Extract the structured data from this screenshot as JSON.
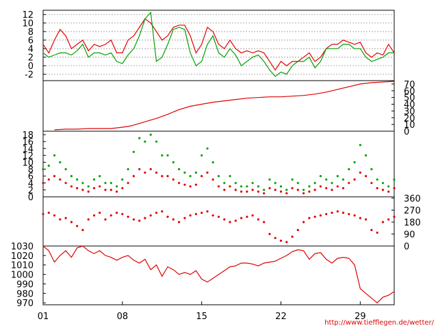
{
  "colors": {
    "primary": "#e00000",
    "secondary": "#00a000",
    "grid": "#999999",
    "axis": "#000000"
  },
  "x_axis": {
    "tick_labels": [
      "01",
      "08",
      "15",
      "22",
      "29"
    ],
    "tick_days": [
      1,
      8,
      15,
      22,
      29
    ],
    "range": [
      1,
      32
    ]
  },
  "source": "http://www.tiefflegen.de/wetter/",
  "chart_data": [
    {
      "id": "temperature",
      "type": "line",
      "ylim": [
        -3.5,
        13
      ],
      "yticks": [
        -2,
        0,
        2,
        4,
        6,
        8,
        10,
        12
      ],
      "grid": true,
      "tick_side": "left",
      "series": [
        {
          "color": "#e00000",
          "x": [
            1,
            1.5,
            2,
            2.5,
            3,
            3.5,
            4,
            4.5,
            5,
            5.5,
            6,
            6.5,
            7,
            7.5,
            8,
            8.5,
            9,
            9.5,
            10,
            10.5,
            11,
            11.5,
            12,
            12.5,
            13,
            13.5,
            14,
            14.5,
            15,
            15.5,
            16,
            16.5,
            17,
            17.5,
            18,
            18.5,
            19,
            19.5,
            20,
            20.5,
            21,
            21.5,
            22,
            22.5,
            23,
            23.5,
            24,
            24.5,
            25,
            25.5,
            26,
            26.5,
            27,
            27.5,
            28,
            28.5,
            29,
            29.5,
            30,
            30.5,
            31,
            31.5,
            32
          ],
          "y": [
            5,
            3,
            6,
            8.5,
            7,
            4,
            5,
            6,
            3.5,
            5,
            4.5,
            5,
            6,
            3,
            3,
            6,
            7,
            9,
            11,
            10,
            8,
            6,
            7,
            9,
            9.5,
            9.5,
            7,
            3,
            5,
            9,
            8,
            5,
            4,
            6,
            4,
            3,
            3.5,
            3,
            3.5,
            3,
            1,
            -1,
            1,
            0,
            1,
            1,
            2,
            3,
            1,
            2,
            4,
            5,
            5,
            6,
            5.5,
            5,
            5.5,
            3,
            2,
            3,
            2.5,
            5,
            3
          ]
        },
        {
          "color": "#00a000",
          "x": [
            1,
            1.5,
            2,
            2.5,
            3,
            3.5,
            4,
            4.5,
            5,
            5.5,
            6,
            6.5,
            7,
            7.5,
            8,
            8.5,
            9,
            9.5,
            10,
            10.5,
            11,
            11.5,
            12,
            12.5,
            13,
            13.5,
            14,
            14.5,
            15,
            15.5,
            16,
            16.5,
            17,
            17.5,
            18,
            18.5,
            19,
            19.5,
            20,
            20.5,
            21,
            21.5,
            22,
            22.5,
            23,
            23.5,
            24,
            24.5,
            25,
            25.5,
            26,
            26.5,
            27,
            27.5,
            28,
            28.5,
            29,
            29.5,
            30,
            30.5,
            31,
            31.5,
            32
          ],
          "y": [
            3,
            2,
            2.5,
            3,
            3,
            2.5,
            3.5,
            5,
            2,
            3,
            3,
            2.5,
            3,
            1,
            0.5,
            2.5,
            4,
            7,
            11,
            12.5,
            1,
            2,
            5,
            8.5,
            9,
            8.5,
            3,
            0,
            1,
            5,
            7,
            3,
            2,
            4,
            2.5,
            0,
            1,
            2,
            2.5,
            1,
            -1,
            -2.5,
            -1.5,
            -2,
            0,
            1,
            1,
            2,
            -0.5,
            1,
            4,
            4,
            4,
            5,
            5,
            4,
            4,
            2,
            1,
            1.5,
            2,
            3,
            3
          ]
        }
      ]
    },
    {
      "id": "precipitation",
      "type": "line",
      "ylim": [
        0,
        75
      ],
      "yticks": [
        0,
        10,
        20,
        30,
        40,
        50,
        60,
        70
      ],
      "grid": false,
      "tick_side": "right",
      "series": [
        {
          "color": "#e00000",
          "x": [
            2,
            3,
            4,
            5,
            6,
            7,
            8,
            8.5,
            9,
            10,
            11,
            12,
            13,
            14,
            15,
            16,
            17,
            18,
            19,
            20,
            21,
            22,
            23,
            24,
            25,
            26,
            27,
            28,
            29,
            30,
            31,
            32
          ],
          "y": [
            2,
            3,
            3,
            4,
            4,
            4,
            6,
            7,
            9,
            14,
            19,
            25,
            32,
            37,
            40,
            43,
            45,
            47,
            49,
            50,
            51,
            51,
            52,
            53,
            55,
            58,
            62,
            66,
            70,
            72,
            73,
            74
          ]
        }
      ]
    },
    {
      "id": "wind_speed",
      "type": "scatter",
      "ylim": [
        0,
        19
      ],
      "yticks": [
        0,
        2,
        4,
        6,
        8,
        10,
        12,
        14,
        16,
        18
      ],
      "grid": false,
      "tick_side": "left",
      "series": [
        {
          "color": "#00a000",
          "x": [
            1,
            1.5,
            2,
            2.5,
            3,
            3.5,
            4,
            4.5,
            5,
            5.5,
            6,
            6.5,
            7,
            7.5,
            8,
            8.5,
            9,
            9.5,
            10,
            10.5,
            11,
            11.5,
            12,
            12.5,
            13,
            13.5,
            14,
            14.5,
            15,
            15.5,
            16,
            16.5,
            17,
            17.5,
            18,
            18.5,
            19,
            19.5,
            20,
            20.5,
            21,
            21.5,
            22,
            22.5,
            23,
            23.5,
            24,
            24.5,
            25,
            25.5,
            26,
            26.5,
            27,
            27.5,
            28,
            28.5,
            29,
            29.5,
            30,
            30.5,
            31,
            31.5,
            32
          ],
          "y": [
            8,
            9,
            12,
            10,
            8,
            6,
            5,
            4,
            3,
            5,
            6,
            4,
            4,
            3,
            5,
            8,
            13,
            17,
            16,
            18,
            16,
            12,
            12,
            10,
            8,
            7,
            6,
            7,
            12,
            14,
            10,
            6,
            4,
            6,
            4,
            3,
            3,
            4,
            3,
            2,
            5,
            4,
            3,
            2,
            5,
            4,
            2,
            3,
            4,
            6,
            5,
            4,
            6,
            5,
            8,
            10,
            15,
            12,
            8,
            5,
            4,
            3,
            5
          ]
        },
        {
          "color": "#e00000",
          "x": [
            1,
            1.5,
            2,
            2.5,
            3,
            3.5,
            4,
            4.5,
            5,
            5.5,
            6,
            6.5,
            7,
            7.5,
            8,
            8.5,
            9,
            9.5,
            10,
            10.5,
            11,
            11.5,
            12,
            12.5,
            13,
            13.5,
            14,
            14.5,
            15,
            15.5,
            16,
            16.5,
            17,
            17.5,
            18,
            18.5,
            19,
            19.5,
            20,
            20.5,
            21,
            21.5,
            22,
            22.5,
            23,
            23.5,
            24,
            24.5,
            25,
            25.5,
            26,
            26.5,
            27,
            27.5,
            28,
            28.5,
            29,
            29.5,
            30,
            30.5,
            31,
            31.5,
            32
          ],
          "y": [
            4,
            5,
            6,
            5,
            4,
            3,
            2.5,
            2,
            1.5,
            2.5,
            3,
            2,
            2,
            1.5,
            2.5,
            4,
            6,
            8,
            7,
            8,
            7,
            6,
            6,
            5,
            4,
            3.5,
            3,
            3.5,
            6,
            7,
            5,
            3,
            2,
            3,
            2,
            1.5,
            1.5,
            2,
            1.5,
            1,
            2.5,
            2,
            1.5,
            1,
            2.5,
            2,
            1,
            1.5,
            2,
            3,
            2.5,
            2,
            3,
            2.5,
            4,
            5,
            7,
            6,
            4,
            2.5,
            2,
            1.5,
            2.5
          ]
        }
      ]
    },
    {
      "id": "wind_direction",
      "type": "scatter",
      "ylim": [
        0,
        370
      ],
      "yticks": [
        0,
        90,
        180,
        270,
        360
      ],
      "grid": false,
      "tick_side": "right",
      "series": [
        {
          "color": "#e00000",
          "x": [
            1,
            1.5,
            2,
            2.5,
            3,
            3.5,
            4,
            4.5,
            5,
            5.5,
            6,
            6.5,
            7,
            7.5,
            8,
            8.5,
            9,
            9.5,
            10,
            10.5,
            11,
            11.5,
            12,
            12.5,
            13,
            13.5,
            14,
            14.5,
            15,
            15.5,
            16,
            16.5,
            17,
            17.5,
            18,
            18.5,
            19,
            19.5,
            20,
            20.5,
            21,
            21.5,
            22,
            22.5,
            23,
            23.5,
            24,
            24.5,
            25,
            25.5,
            26,
            26.5,
            27,
            27.5,
            28,
            28.5,
            29,
            29.5,
            30,
            30.5,
            31,
            31.5,
            32
          ],
          "y": [
            240,
            250,
            230,
            200,
            210,
            180,
            150,
            120,
            200,
            230,
            250,
            200,
            230,
            250,
            240,
            220,
            200,
            190,
            210,
            230,
            250,
            260,
            220,
            200,
            180,
            210,
            230,
            240,
            250,
            260,
            230,
            220,
            200,
            180,
            190,
            210,
            220,
            230,
            200,
            180,
            90,
            60,
            40,
            30,
            70,
            120,
            180,
            210,
            220,
            230,
            240,
            250,
            260,
            250,
            240,
            230,
            210,
            200,
            120,
            100,
            180,
            200,
            220
          ]
        }
      ]
    },
    {
      "id": "pressure",
      "type": "line",
      "ylim": [
        968,
        1030
      ],
      "yticks": [
        970,
        980,
        990,
        1000,
        1010,
        1020,
        1030
      ],
      "grid": false,
      "tick_side": "left",
      "series": [
        {
          "color": "#e00000",
          "x": [
            1,
            1.5,
            2,
            2.5,
            3,
            3.5,
            4,
            4.5,
            5,
            5.5,
            6,
            6.5,
            7,
            7.5,
            8,
            8.5,
            9,
            9.5,
            10,
            10.5,
            11,
            11.5,
            12,
            12.5,
            13,
            13.5,
            14,
            14.5,
            15,
            15.5,
            16,
            16.5,
            17,
            17.5,
            18,
            18.5,
            19,
            19.5,
            20,
            20.5,
            21,
            21.5,
            22,
            22.5,
            23,
            23.5,
            24,
            24.5,
            25,
            25.5,
            26,
            26.5,
            27,
            27.5,
            28,
            28.5,
            29,
            29.5,
            30,
            30.5,
            31,
            31.5,
            32
          ],
          "y": [
            1030,
            1025,
            1013,
            1020,
            1025,
            1018,
            1028,
            1030,
            1025,
            1022,
            1025,
            1020,
            1018,
            1015,
            1018,
            1020,
            1015,
            1012,
            1016,
            1005,
            1010,
            998,
            1008,
            1005,
            1000,
            1002,
            1000,
            1004,
            995,
            992,
            996,
            1000,
            1004,
            1008,
            1009,
            1012,
            1012,
            1011,
            1009,
            1012,
            1013,
            1014,
            1017,
            1020,
            1024,
            1026,
            1025,
            1016,
            1022,
            1023,
            1016,
            1012,
            1017,
            1018,
            1017,
            1010,
            985,
            980,
            975,
            970,
            976,
            978,
            982
          ]
        }
      ]
    }
  ]
}
